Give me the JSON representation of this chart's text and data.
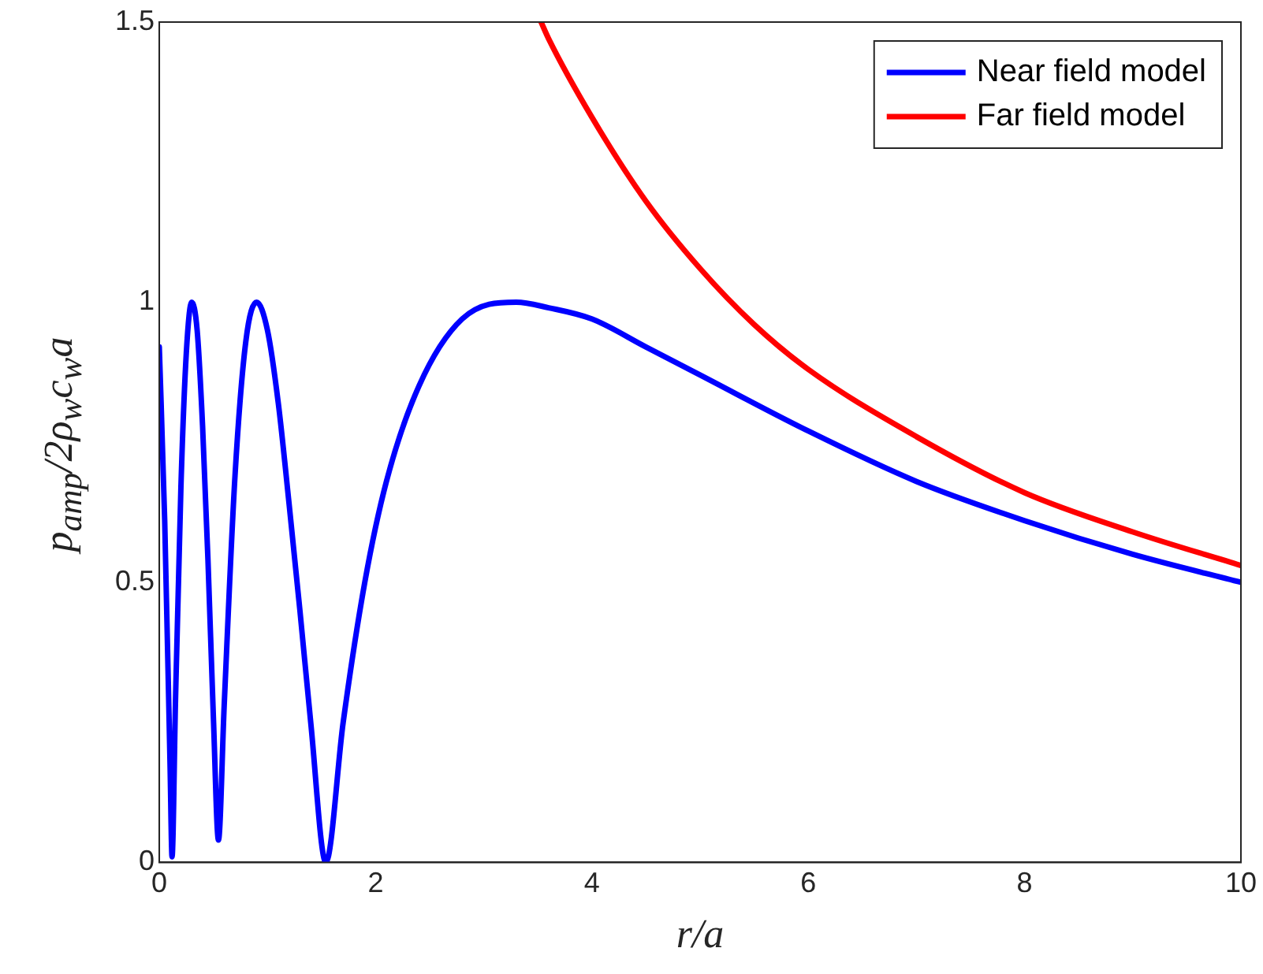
{
  "chart_data": {
    "type": "line",
    "xlabel": "r/a",
    "ylabel": "p$_{amp}$/2ρ$_{w}$c$_{w}$a",
    "xlim": [
      0,
      10
    ],
    "xticks": [
      0,
      2,
      4,
      6,
      8,
      10
    ],
    "ylim": [
      0,
      1.5
    ],
    "yticks": [
      0,
      0.5,
      1,
      1.5
    ],
    "grid": false,
    "legend": "top right",
    "marker": "none",
    "line_style": "solid",
    "series": [
      {
        "name": "Near field model",
        "color": "#0000ff",
        "x": [
          0,
          0.05,
          0.1,
          0.118,
          0.15,
          0.2,
          0.25,
          0.3,
          0.35,
          0.4,
          0.45,
          0.5,
          0.547,
          0.6,
          0.7,
          0.8,
          0.9,
          1.0,
          1.1,
          1.2,
          1.3,
          1.4,
          1.54,
          1.7,
          1.9,
          2.1,
          2.4,
          2.8,
          3.3,
          3.6,
          4,
          4.5,
          5,
          6,
          7,
          8,
          9,
          10
        ],
        "values": [
          0.92,
          0.61,
          0.17,
          0.01,
          0.29,
          0.67,
          0.91,
          1.0,
          0.95,
          0.78,
          0.54,
          0.26,
          0.04,
          0.28,
          0.69,
          0.93,
          1.0,
          0.95,
          0.82,
          0.64,
          0.45,
          0.25,
          0.0,
          0.25,
          0.5,
          0.68,
          0.85,
          0.97,
          1.0,
          0.99,
          0.97,
          0.92,
          0.87,
          0.77,
          0.68,
          0.61,
          0.55,
          0.5
        ]
      },
      {
        "name": "Far field model",
        "color": "#ff0000",
        "x": [
          3.53,
          3.6,
          4,
          4.5,
          5,
          5.5,
          6,
          7,
          8,
          9,
          10
        ],
        "values": [
          1.5,
          1.47,
          1.33,
          1.18,
          1.06,
          0.96,
          0.88,
          0.76,
          0.66,
          0.59,
          0.53
        ]
      }
    ]
  }
}
